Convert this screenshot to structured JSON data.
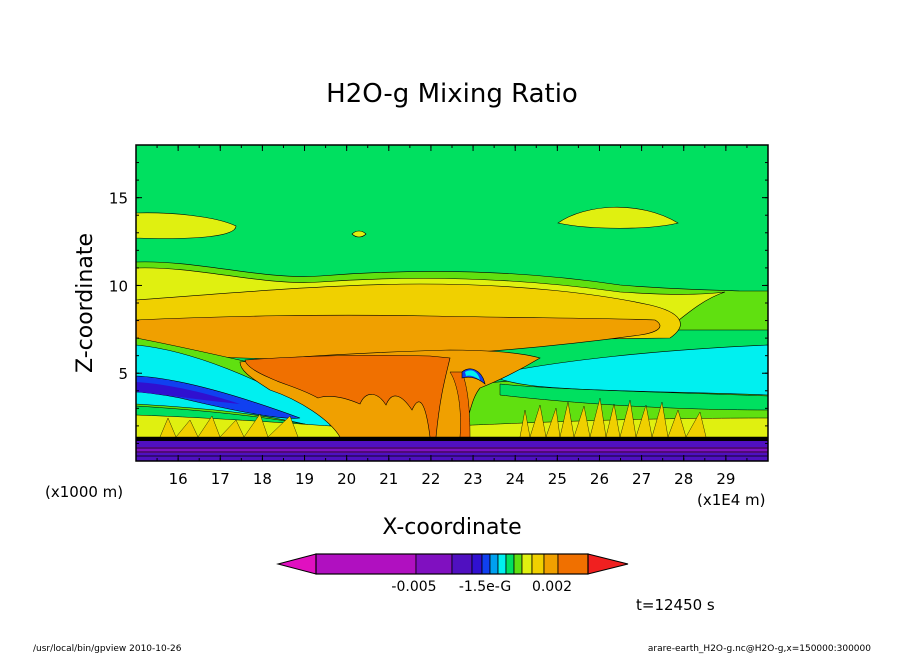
{
  "chart_data": {
    "type": "heatmap",
    "title": "H2O-g Mixing Ratio",
    "xlabel": "X-coordinate",
    "ylabel": "Z-coordinate",
    "x_unit_left": "(x1000 m)",
    "x_unit_right": "(x1E4 m)",
    "xlim": [
      15.0,
      30.0
    ],
    "ylim": [
      0,
      18
    ],
    "x_ticks": [
      16,
      17,
      18,
      19,
      20,
      21,
      22,
      23,
      24,
      25,
      26,
      27,
      28,
      29
    ],
    "y_ticks": [
      5,
      10,
      15
    ],
    "colorbar": {
      "colors": [
        "#e010c0",
        "#b010c0",
        "#8010c0",
        "#5010c0",
        "#3010d0",
        "#1040f0",
        "#00a0f0",
        "#00f0f0",
        "#00e060",
        "#60e010",
        "#e0f010",
        "#f0d000",
        "#f0a000",
        "#f07000",
        "#f02020"
      ],
      "tick_labels": [
        "-0.005",
        "-1.5e-G",
        "0.002"
      ]
    },
    "annotations": {
      "time": "t=12450 s",
      "path": "/usr/local/bin/gpview  2010-10-26",
      "source": "arare-earth_H2O-g.nc@H2O-g,x=150000:300000"
    }
  }
}
